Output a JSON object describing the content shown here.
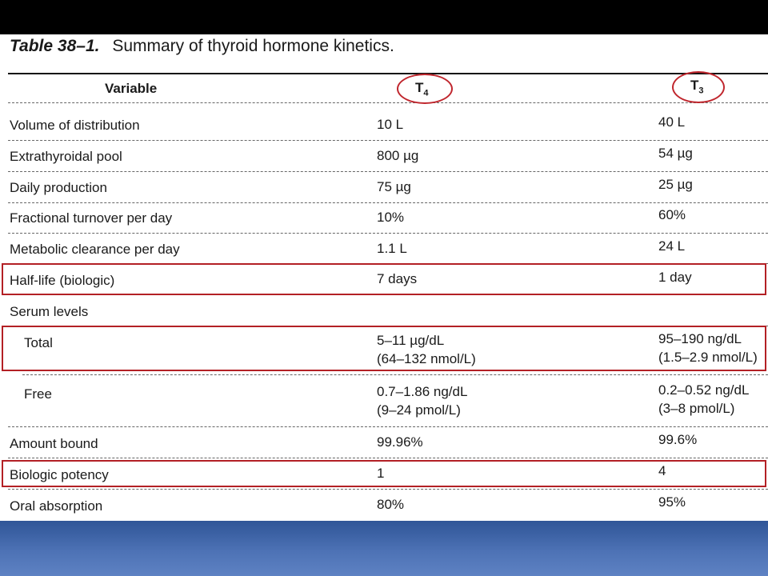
{
  "title": {
    "number": "Table 38–1.",
    "text": "Summary of thyroid hormone kinetics."
  },
  "columns": {
    "variable": "Variable",
    "t4": "T",
    "t4_sub": "4",
    "t3": "T",
    "t3_sub": "3"
  },
  "rows": [
    {
      "label": "Volume of distribution",
      "t4": "10 L",
      "t3": "40 L"
    },
    {
      "label": "Extrathyroidal pool",
      "t4": "800 µg",
      "t3": "54 µg"
    },
    {
      "label": "Daily production",
      "t4": "75 µg",
      "t3": "25 µg"
    },
    {
      "label": "Fractional turnover per day",
      "t4": "10%",
      "t3": "60%"
    },
    {
      "label": "Metabolic clearance per day",
      "t4": "1.1 L",
      "t3": "24 L"
    },
    {
      "label": "Half-life (biologic)",
      "t4": "7 days",
      "t3": "1 day"
    },
    {
      "label": "Serum levels",
      "t4": "",
      "t3": ""
    },
    {
      "label": "Total",
      "t4": "5–11 µg/dL",
      "t4b": "(64–132 nmol/L)",
      "t3": "95–190 ng/dL",
      "t3b": "(1.5–2.9 nmol/L)"
    },
    {
      "label": "Free",
      "t4": "0.7–1.86 ng/dL",
      "t4b": "(9–24 pmol/L)",
      "t3": "0.2–0.52 ng/dL",
      "t3b": "(3–8 pmol/L)"
    },
    {
      "label": "Amount bound",
      "t4": "99.96%",
      "t3": "99.6%"
    },
    {
      "label": "Biologic potency",
      "t4": "1",
      "t3": "4"
    },
    {
      "label": "Oral absorption",
      "t4": "80%",
      "t3": "95%"
    }
  ],
  "colors": {
    "highlight": "#b32025",
    "footer": "#4d72b5",
    "header_bar": "#000000"
  }
}
